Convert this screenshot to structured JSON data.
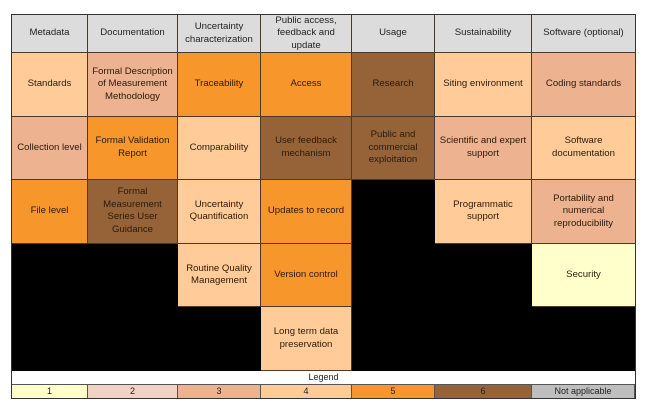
{
  "header": [
    "Metadata",
    "Documentation",
    "Uncertainty characterization",
    "Public access, feedback and update",
    "Usage",
    "Sustainability",
    "Software (optional)"
  ],
  "levels": {
    "1": "#FFFFCC",
    "2": "#F0D3C4",
    "3": "#EDB28F",
    "4": "#FFCC99",
    "5": "#F7962A",
    "6": "#966339",
    "na": "#BEBEBE"
  },
  "rows": [
    [
      {
        "text": "Standards",
        "level": 4
      },
      {
        "text": "Formal Description of Measurement Methodology",
        "level": 3
      },
      {
        "text": "Traceability",
        "level": 5
      },
      {
        "text": "Access",
        "level": 5
      },
      {
        "text": "Research",
        "level": 6
      },
      {
        "text": "Siting environment",
        "level": 4
      },
      {
        "text": "Coding standards",
        "level": 3
      }
    ],
    [
      {
        "text": "Collection level",
        "level": 3
      },
      {
        "text": "Formal Validation Report",
        "level": 5
      },
      {
        "text": "Comparability",
        "level": 4
      },
      {
        "text": "User feedback mechanism",
        "level": 6
      },
      {
        "text": "Public and commercial exploitation",
        "level": 6
      },
      {
        "text": "Scientific and expert support",
        "level": 3
      },
      {
        "text": "Software documentation",
        "level": 4
      }
    ],
    [
      {
        "text": "File level",
        "level": 5
      },
      {
        "text": "Formal Measurement Series User Guidance",
        "level": 6
      },
      {
        "text": "Uncertainty Quantification",
        "level": 4
      },
      {
        "text": "Updates to record",
        "level": 5
      },
      null,
      {
        "text": "Programmatic support",
        "level": 4
      },
      {
        "text": "Portability and numerical reproducibility",
        "level": 3
      }
    ],
    [
      null,
      null,
      {
        "text": "Routine Quality Management",
        "level": 4
      },
      {
        "text": "Version control",
        "level": 5
      },
      null,
      null,
      {
        "text": "Security",
        "level": 1
      }
    ],
    [
      null,
      null,
      null,
      {
        "text": "Long term data preservation",
        "level": 4
      },
      null,
      null,
      null
    ]
  ],
  "legend": {
    "title": "Legend",
    "items": [
      {
        "label": "1",
        "level": "1"
      },
      {
        "label": "2",
        "level": "2"
      },
      {
        "label": "3",
        "level": "3"
      },
      {
        "label": "4",
        "level": "4"
      },
      {
        "label": "5",
        "level": "5"
      },
      {
        "label": "6",
        "level": "6"
      },
      {
        "label": "Not applicable",
        "level": "na"
      }
    ]
  }
}
